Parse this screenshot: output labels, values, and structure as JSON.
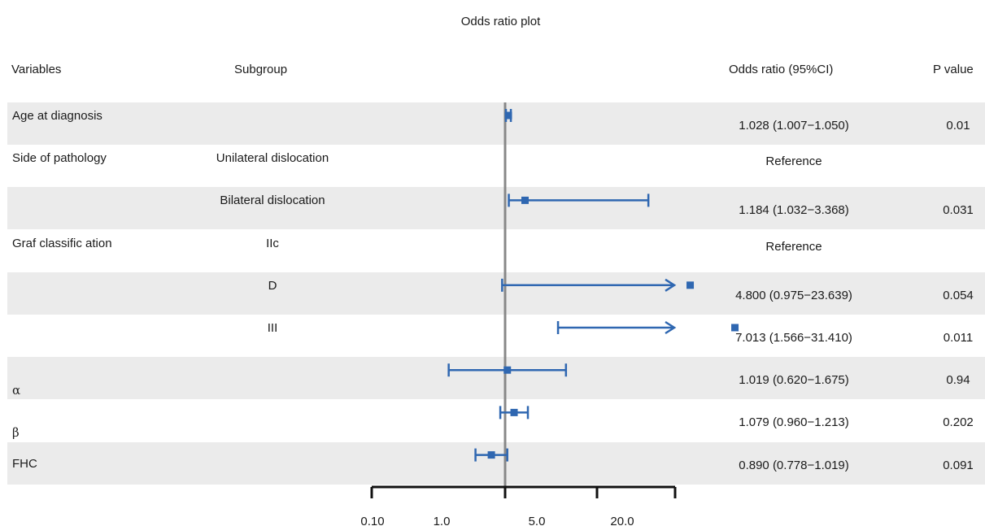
{
  "chart_data": {
    "type": "forest",
    "title": "Odds ratio plot",
    "columns": {
      "variables": "Variables",
      "subgroup": "Subgroup",
      "or": "Odds ratio (95%CI)",
      "p": "P value"
    },
    "reference_line": 1.0,
    "x_scale": "log",
    "x_ticks": [
      {
        "label": "0.10",
        "value": 0.1
      },
      {
        "label": "1.0",
        "value": 0.316
      },
      {
        "label": "5.0",
        "value": 1.0
      },
      {
        "label": "20.0",
        "value": 3.16
      }
    ],
    "xlim": [
      0.1,
      31.4
    ],
    "rows": [
      {
        "variable": "Age at diagnosis",
        "subgroup": "",
        "or_text": "1.028 (1.007−1.050)",
        "p": "0.01",
        "or": 1.028,
        "lo": 1.007,
        "hi": 1.05,
        "shaded": true
      },
      {
        "variable": "Side of pathology",
        "subgroup": "Unilateral dislocation",
        "or_text": "Reference",
        "p": "",
        "shaded": false
      },
      {
        "variable": "",
        "subgroup": "Bilateral dislocation",
        "or_text": "1.184 (1.032−3.368)",
        "p": "0.031",
        "or": 1.184,
        "lo": 1.032,
        "hi": 3.368,
        "shaded": true
      },
      {
        "variable": "Graf classific ation",
        "subgroup": "IIc",
        "or_text": "Reference",
        "p": "",
        "shaded": false
      },
      {
        "variable": "",
        "subgroup": "D",
        "or_text": "4.800 (0.975−23.639)",
        "p": "0.054",
        "or": 4.8,
        "lo": 0.975,
        "hi": 23.639,
        "arrow": true,
        "shaded": true
      },
      {
        "variable": "",
        "subgroup": "III",
        "or_text": "7.013 (1.566−31.410)",
        "p": "0.011",
        "or": 7.013,
        "lo": 1.566,
        "hi": 31.41,
        "arrow": true,
        "shaded": false
      },
      {
        "variable": "α",
        "subgroup": "",
        "or_text": "1.019 (0.620−1.675)",
        "p": "0.94",
        "or": 1.019,
        "lo": 0.62,
        "hi": 1.675,
        "shaded": true
      },
      {
        "variable": "β",
        "subgroup": "",
        "or_text": "1.079 (0.960−1.213)",
        "p": "0.202",
        "or": 1.079,
        "lo": 0.96,
        "hi": 1.213,
        "shaded": false
      },
      {
        "variable": "FHC",
        "subgroup": "",
        "or_text": "0.890 (0.778−1.019)",
        "p": "0.091",
        "or": 0.89,
        "lo": 0.778,
        "hi": 1.019,
        "shaded": true
      }
    ],
    "colors": {
      "marker": "#2f67b1",
      "reference_line": "#888888",
      "row_shade": "#ebebeb"
    }
  }
}
